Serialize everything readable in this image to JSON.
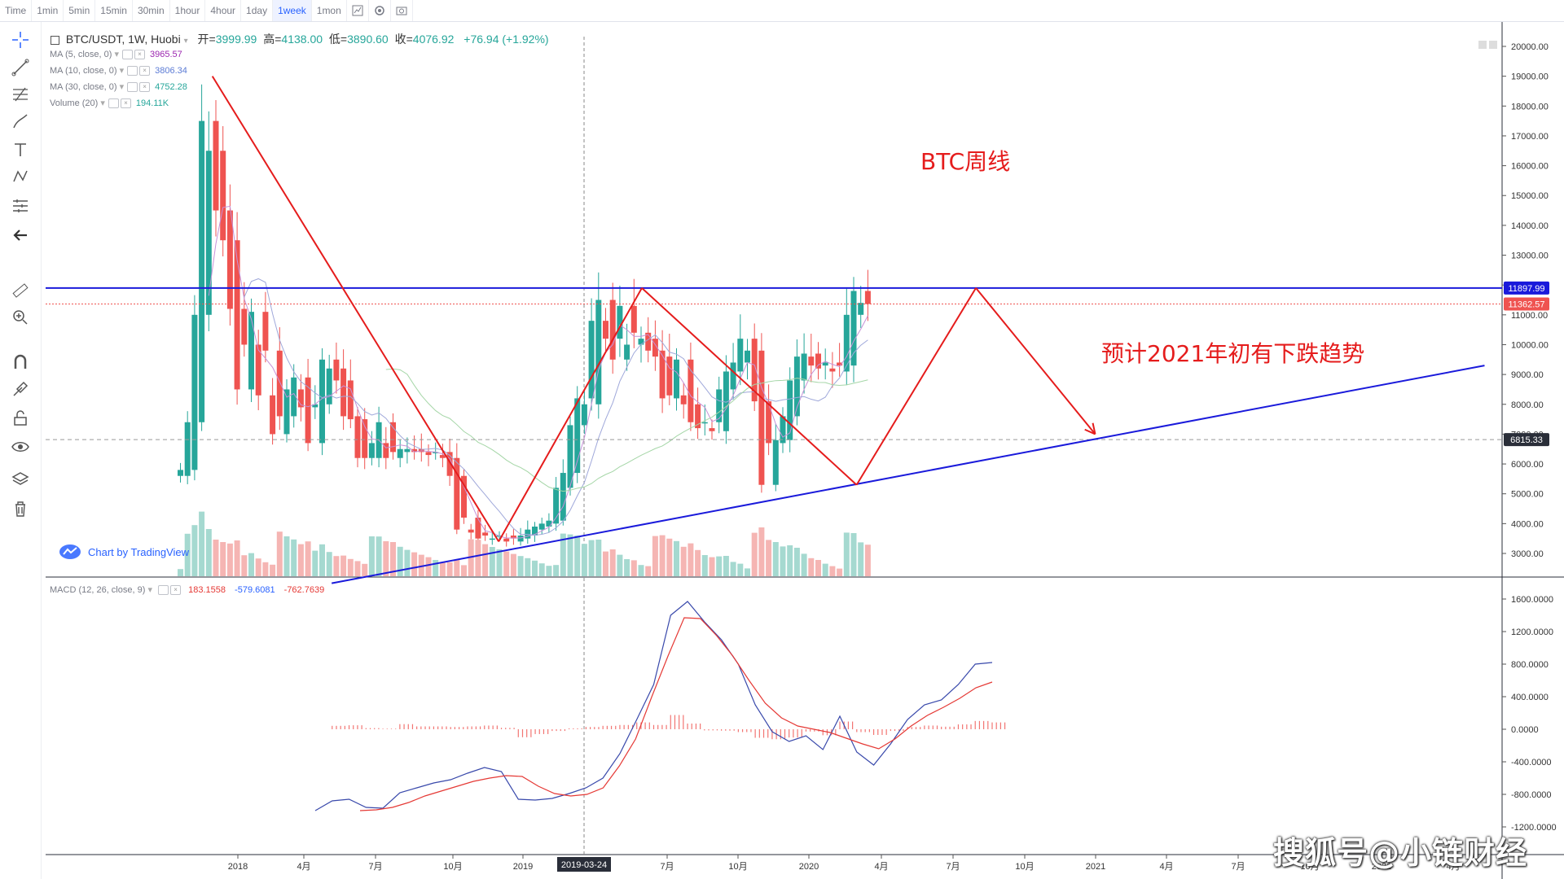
{
  "toolbar": {
    "timeframes": [
      "Time",
      "1min",
      "5min",
      "15min",
      "30min",
      "1hour",
      "4hour",
      "1day",
      "1week",
      "1mon"
    ],
    "active": "1week",
    "icons": [
      "indicators-icon",
      "settings-icon",
      "screenshot-icon"
    ]
  },
  "left_tools": [
    "crosshair-icon",
    "trendline-icon",
    "fib-icon",
    "brush-icon",
    "text-icon",
    "pattern-icon",
    "measure-bars-icon",
    "back-arrow-icon",
    "ruler-icon",
    "zoom-in-icon",
    "magnet-icon",
    "lock-drawing-icon",
    "unlock-icon",
    "eye-icon",
    "layers-icon",
    "trash-icon"
  ],
  "header": {
    "symbol": "BTC/USDT, 1W, Huobi",
    "open_label": "开=",
    "open": "3999.99",
    "high_label": "高=",
    "high": "4138.00",
    "low_label": "低=",
    "low": "3890.60",
    "close_label": "收=",
    "close": "4076.92",
    "change": "+76.94 (+1.92%)"
  },
  "indicators": [
    {
      "label": "MA (5, close, 0)",
      "value": "3965.57",
      "color": "#9c27b0"
    },
    {
      "label": "MA (10, close, 0)",
      "value": "3806.34",
      "color": "#5b7bd5"
    },
    {
      "label": "MA (30, close, 0)",
      "value": "4752.28",
      "color": "#26a69a"
    },
    {
      "label": "Volume (20)",
      "value": "194.11K",
      "color": "#26a69a"
    }
  ],
  "macd_legend": {
    "label": "MACD (12, 26, close, 9)",
    "v1": "183.1558",
    "v2": "-579.6081",
    "v3": "-762.7639"
  },
  "branding": {
    "tv_label": "Chart by TradingView",
    "watermark": "搜狐号@小链财经"
  },
  "annotations": {
    "title": "BTC周线",
    "forecast": "预计2021年初有下跌趋势"
  },
  "price_tags": {
    "upper": "11897.99",
    "current": "11362.57",
    "lower": "6815.33"
  },
  "crosshair_date": "2019-03-24",
  "chart_data": {
    "type": "candlestick",
    "price_axis": {
      "ylim": [
        2000,
        20000
      ],
      "ticks": [
        "20000.00",
        "19000.00",
        "18000.00",
        "17000.00",
        "16000.00",
        "15000.00",
        "14000.00",
        "13000.00",
        "12000.00",
        "11000.00",
        "10000.00",
        "9000.00",
        "8000.00",
        "7000.00",
        "6000.00",
        "5000.00",
        "4000.00",
        "3000.00"
      ]
    },
    "macd_axis": {
      "ylim": [
        -1200,
        1600
      ],
      "ticks": [
        "1600.0000",
        "1200.0000",
        "800.0000",
        "400.0000",
        "0.0000",
        "-400.0000",
        "-800.0000",
        "-1200.0000"
      ]
    },
    "x_axis": {
      "labels": [
        "2018",
        "4月",
        "7月",
        "10月",
        "2019",
        "7月",
        "10月",
        "2020",
        "4月",
        "7月",
        "10月",
        "2021",
        "4月",
        "7月",
        "10月",
        "2022",
        "4月"
      ]
    },
    "weekly_close": [
      5800,
      7400,
      11000,
      17500,
      16500,
      14500,
      13500,
      11200,
      8500,
      10000,
      11100,
      8300,
      9800,
      7000,
      7600,
      8500,
      8900,
      7900,
      6700,
      8000,
      9500,
      9200,
      8800,
      7600,
      7500,
      6200,
      6200,
      6700,
      7400,
      6200,
      6400,
      6500,
      6500,
      6400,
      6400,
      6300,
      6400,
      6200,
      5600,
      3800,
      4200,
      3700,
      3500,
      3600,
      3500,
      3600,
      3400,
      3500,
      3600,
      3800,
      3900,
      4000,
      4100,
      5200,
      5700,
      7300,
      8200,
      8000,
      10800,
      11500,
      10200,
      9500,
      11300,
      10000,
      10400,
      10200,
      9800,
      9600,
      8200,
      8300,
      9500,
      8000,
      7400,
      7200,
      7400,
      7100,
      8500,
      9100,
      9400,
      10200,
      9800,
      8100,
      5300,
      6700,
      6800,
      7600,
      8800,
      9600,
      9700,
      9300,
      9200,
      9400,
      9100,
      9300,
      11000,
      11800,
      11400,
      11362
    ],
    "weekly_open": [
      5600,
      5800,
      7400,
      11000,
      17500,
      16500,
      14500,
      13500,
      11200,
      8500,
      10000,
      11100,
      8300,
      9800,
      7000,
      7600,
      8500,
      8900,
      7900,
      6700,
      8000,
      9500,
      9200,
      8800,
      7600,
      7500,
      6200,
      6200,
      6700,
      7400,
      6200,
      6400,
      6500,
      6500,
      6400,
      6400,
      6300,
      6400,
      6200,
      5600,
      3800,
      4200,
      3700,
      3500,
      3600,
      3500,
      3600,
      3400,
      3500,
      3600,
      3800,
      3900,
      4000,
      4100,
      5200,
      5700,
      7300,
      8200,
      8000,
      10800,
      11500,
      10200,
      9500,
      11300,
      10000,
      10400,
      10200,
      9800,
      9600,
      8200,
      8300,
      9500,
      8000,
      7400,
      7200,
      7400,
      7100,
      8500,
      9100,
      9400,
      10200,
      9800,
      8100,
      5300,
      6700,
      6800,
      7600,
      8800,
      9600,
      9700,
      9300,
      9200,
      9400,
      9100,
      9300,
      11000,
      11800,
      11400
    ],
    "macd_line": [
      -1000,
      -880,
      -860,
      -960,
      -970,
      -780,
      -720,
      -660,
      -620,
      -540,
      -470,
      -520,
      -860,
      -870,
      -850,
      -790,
      -720,
      -600,
      -300,
      120,
      550,
      1400,
      1570,
      1320,
      1100,
      800,
      300,
      -30,
      -150,
      -80,
      -250,
      160,
      -280,
      -440,
      -180,
      120,
      300,
      360,
      550,
      800,
      820
    ],
    "signal_line": [
      -1000,
      -990,
      -960,
      -900,
      -820,
      -760,
      -700,
      -640,
      -600,
      -570,
      -580,
      -700,
      -790,
      -820,
      -800,
      -720,
      -450,
      -120,
      400,
      900,
      1370,
      1360,
      1150,
      900,
      600,
      320,
      140,
      40,
      0,
      -40,
      -110,
      -180,
      -240,
      -120,
      40,
      170,
      270,
      380,
      510,
      580
    ],
    "annotation_lines": [
      {
        "name": "downtrend-2017-2018",
        "from": [
          "2017-12",
          19000
        ],
        "to": [
          "2018-12",
          3400
        ]
      },
      {
        "name": "uptrend-2019",
        "from": [
          "2018-12",
          3400
        ],
        "to": [
          "2019-06",
          11900
        ]
      },
      {
        "name": "downtrend-2019",
        "from": [
          "2019-06",
          11900
        ],
        "to": [
          "2020-03",
          5300
        ]
      },
      {
        "name": "uptrend-2020",
        "from": [
          "2020-03",
          5300
        ],
        "to": [
          "2020-08",
          11900
        ]
      },
      {
        "name": "forecast-drop",
        "from": [
          "2020-08",
          11900
        ],
        "to": [
          "2021-01",
          7000
        ]
      }
    ],
    "horizontal_lines": [
      11897.99,
      11362.57,
      6815.33
    ],
    "support_line": {
      "from": [
        "2018-05",
        2000
      ],
      "to": [
        "2022-06",
        9300
      ]
    }
  }
}
